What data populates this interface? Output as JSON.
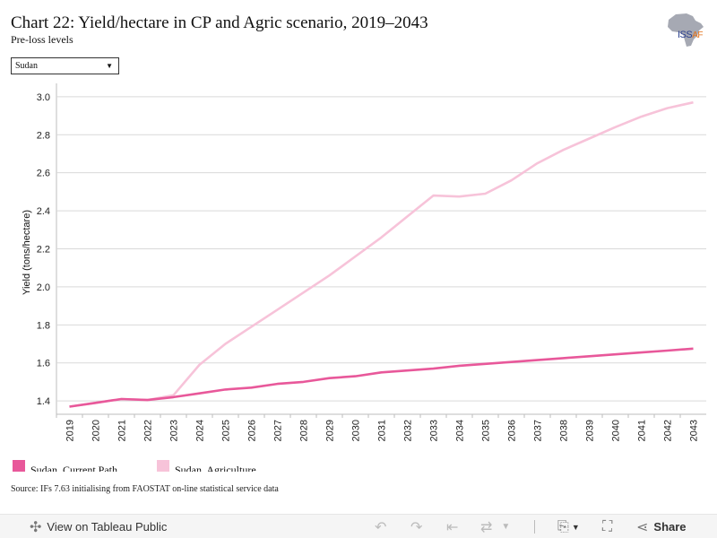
{
  "header": {
    "title": "Chart 22: Yield/hectare in CP and Agric scenario, 2019–2043",
    "subtitle": "Pre-loss levels"
  },
  "logo": {
    "text_main": "ISS",
    "text_small": "AF"
  },
  "filter": {
    "selected": "Sudan"
  },
  "source": "Source: IFs 7.63 initialising from FAOSTAT on-line statistical service data",
  "toolbar": {
    "view_label": "View on Tableau Public",
    "share_label": "Share",
    "icons": [
      "tableau-icon",
      "undo-icon",
      "redo-icon",
      "revert-icon",
      "refresh-icon",
      "download-icon",
      "fullscreen-icon",
      "share-icon"
    ]
  },
  "colors": {
    "current_path": "#e8589a",
    "agriculture": "#f7c3d9",
    "grid": "#d9d9d9"
  },
  "chart_data": {
    "type": "line",
    "title": "Chart 22: Yield/hectare in CP and Agric scenario, 2019–2043",
    "ylabel": "Yield (tons/hectare)",
    "xlabel": "",
    "ylim": [
      1.33,
      3.07
    ],
    "yticks": [
      1.4,
      1.6,
      1.8,
      2.0,
      2.2,
      2.4,
      2.6,
      2.8,
      3.0
    ],
    "ytick_labels": [
      "1.4",
      "1.6",
      "1.8",
      "2.0",
      "2.2",
      "2.4",
      "2.6",
      "2.8",
      "3.0"
    ],
    "grid": true,
    "legend_position": "bottom-left",
    "x": [
      "2019",
      "2020",
      "2021",
      "2022",
      "2023",
      "2024",
      "2025",
      "2026",
      "2027",
      "2028",
      "2029",
      "2030",
      "2031",
      "2032",
      "2033",
      "2034",
      "2035",
      "2036",
      "2037",
      "2038",
      "2039",
      "2040",
      "2041",
      "2042",
      "2043"
    ],
    "series": [
      {
        "name": "Sudan, Current Path",
        "color": "#e8589a",
        "values": [
          1.37,
          1.39,
          1.41,
          1.405,
          1.42,
          1.44,
          1.46,
          1.47,
          1.49,
          1.5,
          1.52,
          1.53,
          1.55,
          1.56,
          1.57,
          1.585,
          1.595,
          1.605,
          1.615,
          1.625,
          1.635,
          1.645,
          1.655,
          1.665,
          1.675
        ]
      },
      {
        "name": "Sudan, Agriculture",
        "color": "#f7c3d9",
        "values": [
          1.37,
          1.39,
          1.41,
          1.405,
          1.43,
          1.59,
          1.7,
          1.79,
          1.88,
          1.97,
          2.06,
          2.16,
          2.26,
          2.37,
          2.48,
          2.475,
          2.49,
          2.56,
          2.65,
          2.72,
          2.78,
          2.84,
          2.895,
          2.94,
          2.97
        ]
      }
    ]
  }
}
